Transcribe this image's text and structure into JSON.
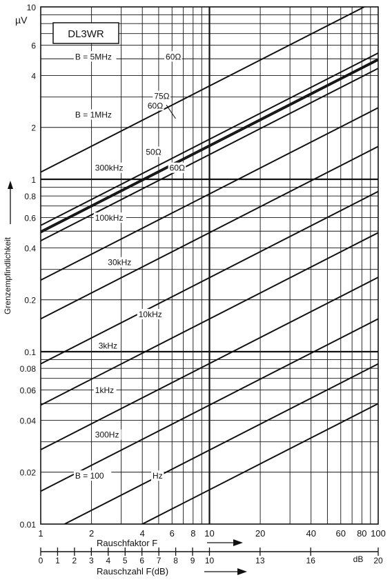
{
  "chart_data": {
    "type": "line",
    "badge": "DL3WR",
    "unit": "µV",
    "ylabel": "Grenzempfindlichkeit",
    "xlabel_factor": "Rauschfaktor  F",
    "xlabel_db": "Rauschzahl  F(dB)",
    "db_unit": "dB",
    "x_scale": "log",
    "y_scale": "log",
    "xlim": [
      1,
      100
    ],
    "ylim": [
      0.01,
      10
    ],
    "grid": true,
    "y_ticks": [
      {
        "v": 0.01,
        "label": "0.01"
      },
      {
        "v": 0.02,
        "label": "0.02"
      },
      {
        "v": 0.04,
        "label": "0.04"
      },
      {
        "v": 0.06,
        "label": "0.06"
      },
      {
        "v": 0.08,
        "label": "0.08"
      },
      {
        "v": 0.1,
        "label": "0.1"
      },
      {
        "v": 0.2,
        "label": "0.2"
      },
      {
        "v": 0.4,
        "label": "0.4"
      },
      {
        "v": 0.6,
        "label": "0.6"
      },
      {
        "v": 0.8,
        "label": "0.8"
      },
      {
        "v": 1,
        "label": "1"
      },
      {
        "v": 2,
        "label": "2"
      },
      {
        "v": 4,
        "label": "4"
      },
      {
        "v": 6,
        "label": "6"
      },
      {
        "v": 10,
        "label": "10"
      }
    ],
    "x_ticks_factor": [
      {
        "v": 1,
        "label": "1"
      },
      {
        "v": 2,
        "label": "2"
      },
      {
        "v": 4,
        "label": "4"
      },
      {
        "v": 6,
        "label": "6"
      },
      {
        "v": 8,
        "label": "8"
      },
      {
        "v": 10,
        "label": "10"
      },
      {
        "v": 20,
        "label": "20"
      },
      {
        "v": 40,
        "label": "40"
      },
      {
        "v": 60,
        "label": "60"
      },
      {
        "v": 80,
        "label": "80"
      },
      {
        "v": 100,
        "label": "100"
      }
    ],
    "x_ticks_db": [
      {
        "v": 0,
        "label": "0"
      },
      {
        "v": 1,
        "label": "1"
      },
      {
        "v": 2,
        "label": "2"
      },
      {
        "v": 3,
        "label": "3"
      },
      {
        "v": 4,
        "label": "4"
      },
      {
        "v": 5,
        "label": "5"
      },
      {
        "v": 6,
        "label": "6"
      },
      {
        "v": 7,
        "label": "7"
      },
      {
        "v": 8,
        "label": "8"
      },
      {
        "v": 9,
        "label": "9"
      },
      {
        "v": 10,
        "label": "10"
      },
      {
        "v": 13,
        "label": "13"
      },
      {
        "v": 16,
        "label": "16"
      },
      {
        "v": 20,
        "label": "20"
      }
    ],
    "series": [
      {
        "label": "B = 5MHz  60Ω",
        "y_at_1": 1.1
      },
      {
        "label": "75Ω",
        "y_at_1": 0.54
      },
      {
        "label": "60Ω",
        "y_at_1": 0.5
      },
      {
        "label": "B = 1MHz",
        "y_at_1": 0.49
      },
      {
        "label": "50Ω",
        "y_at_1": 0.44
      },
      {
        "label": "300kHz  60Ω",
        "y_at_1": 0.26
      },
      {
        "label": "100kHz",
        "y_at_1": 0.155
      },
      {
        "label": "30kHz",
        "y_at_1": 0.085
      },
      {
        "label": "10kHz",
        "y_at_1": 0.049
      },
      {
        "label": "3kHz",
        "y_at_1": 0.027
      },
      {
        "label": "1kHz",
        "y_at_1": 0.0155
      },
      {
        "label": "300Hz",
        "y_at_1": 0.0085
      },
      {
        "label": "B = 100  Hz",
        "y_at_1": 0.005
      }
    ],
    "labels": [
      {
        "text": "B = 5MHz",
        "x": 1.6,
        "y": 5
      },
      {
        "text": "60Ω",
        "x": 5.5,
        "y": 5
      },
      {
        "text": "75Ω",
        "x": 4.7,
        "y": 2.95
      },
      {
        "text": "60Ω",
        "x": 4.3,
        "y": 2.6
      },
      {
        "text": "B = 1MHz",
        "x": 1.6,
        "y": 2.3
      },
      {
        "text": "50Ω",
        "x": 4.2,
        "y": 1.4
      },
      {
        "text": "300kHz",
        "x": 2.1,
        "y": 1.13
      },
      {
        "text": "60Ω",
        "x": 5.8,
        "y": 1.13
      },
      {
        "text": "100kHz",
        "x": 2.1,
        "y": 0.58
      },
      {
        "text": "30kHz",
        "x": 2.5,
        "y": 0.32
      },
      {
        "text": "10kHz",
        "x": 3.8,
        "y": 0.16
      },
      {
        "text": "3kHz",
        "x": 2.2,
        "y": 0.105
      },
      {
        "text": "1kHz",
        "x": 2.1,
        "y": 0.058
      },
      {
        "text": "300Hz",
        "x": 2.1,
        "y": 0.032
      },
      {
        "text": "B = 100",
        "x": 1.6,
        "y": 0.0185
      },
      {
        "text": "Hz",
        "x": 4.6,
        "y": 0.0185
      }
    ]
  }
}
